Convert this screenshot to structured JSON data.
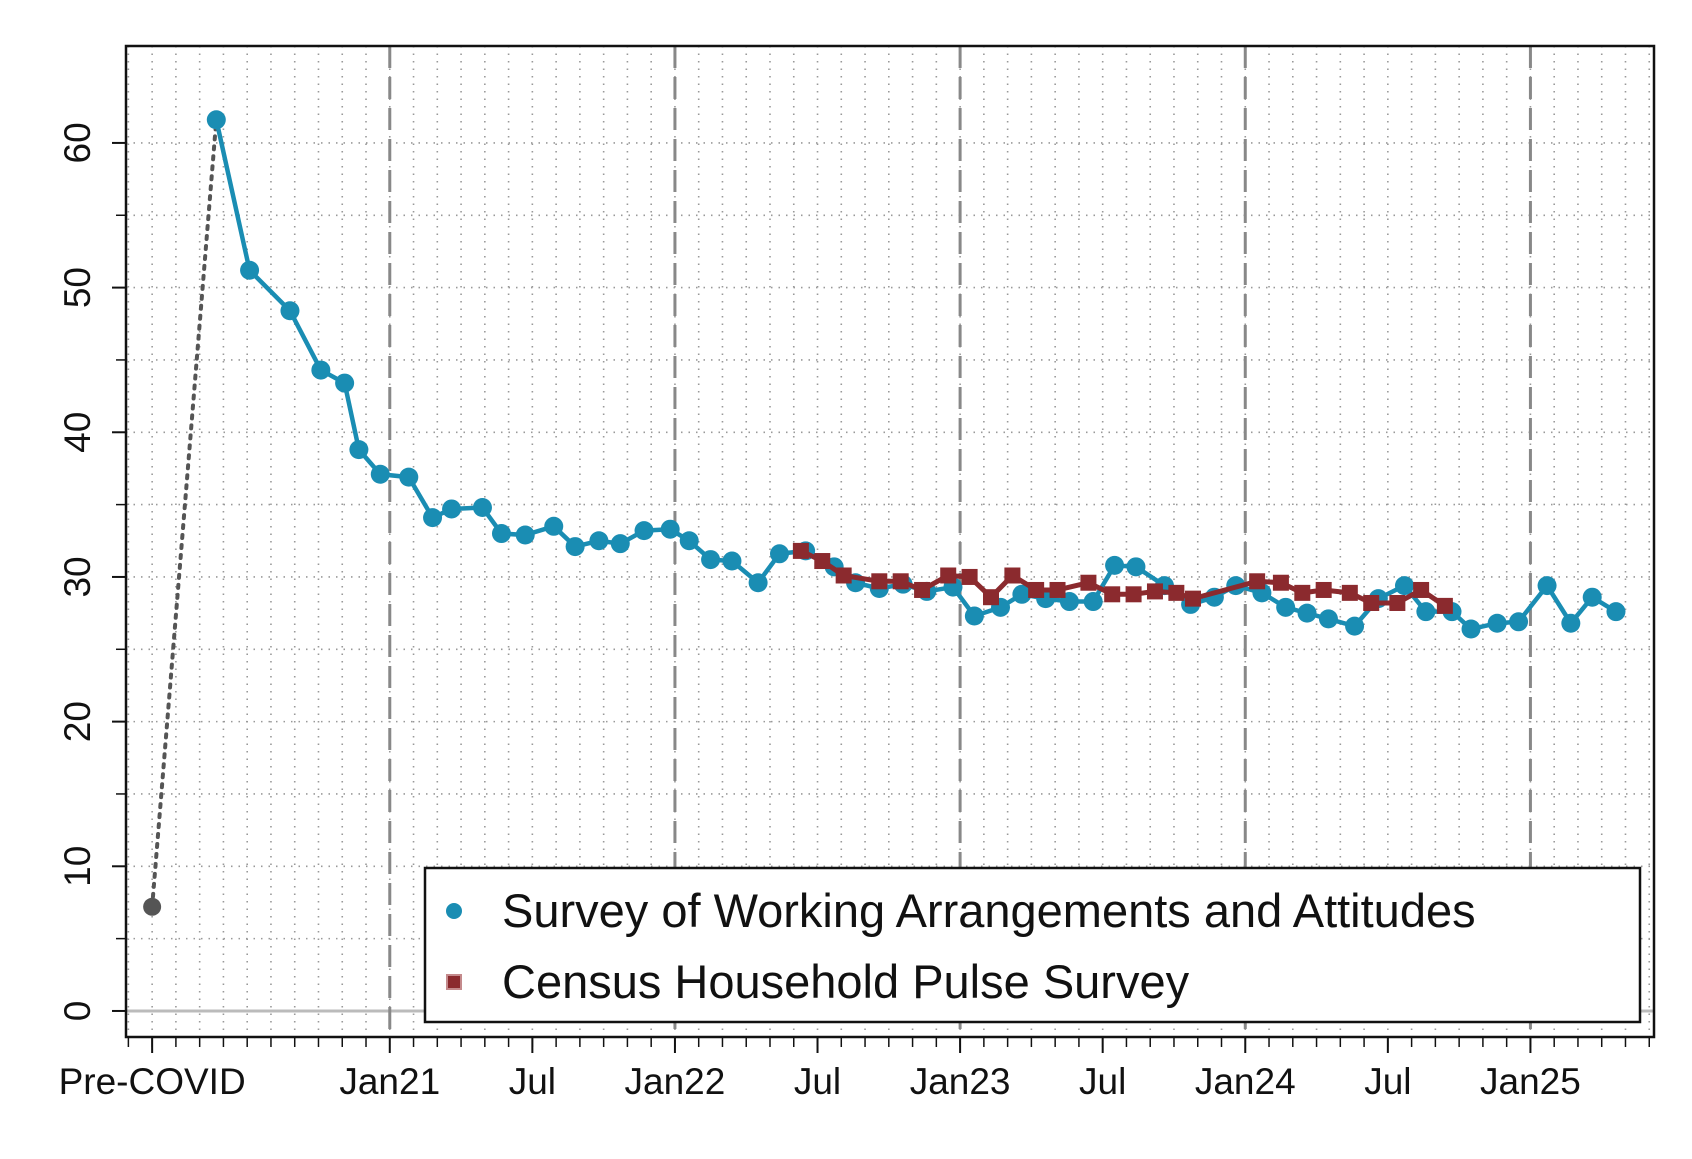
{
  "chart_data": {
    "type": "line",
    "xlim": [
      -1.1,
      63.2
    ],
    "ylim": [
      -1.8,
      66.7
    ],
    "xticks": [
      {
        "value": 0,
        "label": "Pre-COVID"
      },
      {
        "value": 10,
        "label": "Jan21"
      },
      {
        "value": 16,
        "label": "Jul"
      },
      {
        "value": 22,
        "label": "Jan22"
      },
      {
        "value": 28,
        "label": "Jul"
      },
      {
        "value": 34,
        "label": "Jan23"
      },
      {
        "value": 40,
        "label": "Jul"
      },
      {
        "value": 46,
        "label": "Jan24"
      },
      {
        "value": 52,
        "label": "Jul"
      },
      {
        "value": 58,
        "label": "Jan25"
      }
    ],
    "yticks": [
      0,
      10,
      20,
      30,
      40,
      50,
      60
    ],
    "grid": true,
    "legend": "bottom-right",
    "baseline": {
      "x": 0,
      "value": 7.2,
      "color": "#555555"
    },
    "series": [
      {
        "name": "Survey of Working Arrangements and Attitudes",
        "color": "#1a8db3",
        "marker": "circle",
        "x": [
          2.7,
          4.1,
          5.8,
          7.1,
          8.1,
          8.7,
          9.6,
          10.8,
          11.8,
          12.6,
          13.9,
          14.7,
          15.7,
          16.9,
          17.8,
          18.8,
          19.7,
          20.7,
          21.8,
          22.6,
          23.5,
          24.4,
          25.5,
          26.4,
          27.5,
          28.7,
          29.6,
          30.6,
          31.6,
          32.6,
          33.7,
          34.6,
          35.7,
          36.6,
          37.6,
          38.6,
          39.6,
          40.5,
          41.4,
          42.6,
          43.7,
          44.7,
          45.6,
          46.7,
          47.7,
          48.6,
          49.5,
          50.6,
          51.6,
          52.7,
          53.6,
          54.7,
          55.5,
          56.6,
          57.5,
          58.7,
          59.7,
          60.6,
          61.6
        ],
        "values": [
          61.6,
          51.2,
          48.4,
          44.3,
          43.4,
          38.8,
          37.1,
          36.9,
          34.1,
          34.7,
          34.8,
          33.0,
          32.9,
          33.5,
          32.1,
          32.5,
          32.3,
          33.2,
          33.3,
          32.5,
          31.2,
          31.1,
          29.6,
          31.6,
          31.8,
          30.7,
          29.6,
          29.2,
          29.5,
          29.0,
          29.3,
          27.3,
          27.9,
          28.8,
          28.5,
          28.3,
          28.3,
          30.8,
          30.7,
          29.4,
          28.1,
          28.6,
          29.4,
          28.9,
          27.9,
          27.5,
          27.1,
          26.6,
          28.5,
          29.4,
          27.6,
          27.6,
          26.4,
          26.8,
          26.9,
          29.4,
          26.8,
          28.6,
          27.6
        ]
      },
      {
        "name": "Census Household Pulse Survey",
        "color": "#8b2a2e",
        "marker": "square",
        "x": [
          27.3,
          28.2,
          29.1,
          30.6,
          31.5,
          32.4,
          33.5,
          34.4,
          35.3,
          36.2,
          37.2,
          38.1,
          39.4,
          40.4,
          41.3,
          42.2,
          43.1,
          43.8,
          46.5,
          47.5,
          48.4,
          49.3,
          50.4,
          51.3,
          52.4,
          53.4,
          54.4
        ],
        "values": [
          31.8,
          31.1,
          30.1,
          29.7,
          29.7,
          29.1,
          30.1,
          30.0,
          28.6,
          30.1,
          29.1,
          29.1,
          29.6,
          28.8,
          28.8,
          29.0,
          28.9,
          28.5,
          29.7,
          29.6,
          28.9,
          29.1,
          28.9,
          28.2,
          28.2,
          29.1,
          28.0
        ]
      }
    ]
  }
}
